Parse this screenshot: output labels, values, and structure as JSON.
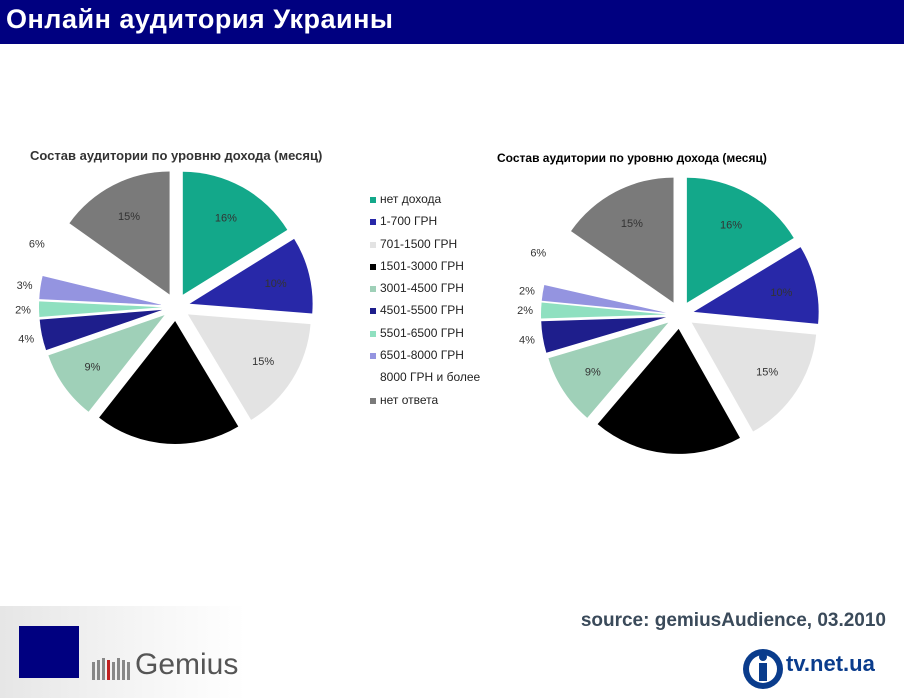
{
  "page": {
    "title": "Онлайн аудитория Украины"
  },
  "legend": [
    {
      "label": "нет дохода",
      "color": "#13a88a"
    },
    {
      "label": "1-700 ГРН",
      "color": "#2828a8"
    },
    {
      "label": "701-1500 ГРН",
      "color": "#e3e3e3"
    },
    {
      "label": "1501-3000 ГРН",
      "color": "#000000"
    },
    {
      "label": "3001-4500 ГРН",
      "color": "#9fd0b8"
    },
    {
      "label": "4501-5500 ГРН",
      "color": "#1e1e8c"
    },
    {
      "label": "5501-6500 ГРН",
      "color": "#8fe0c0"
    },
    {
      "label": "6501-8000 ГРН",
      "color": "#9494e0"
    },
    {
      "label": "8000 ГРН и более",
      "color": "#ffffff"
    },
    {
      "label": "нет ответа",
      "color": "#7a7a7a"
    }
  ],
  "chart_data": [
    {
      "type": "pie",
      "title": "Состав аудитории по уровню дохода  (месяц)",
      "categories": [
        "нет дохода",
        "1-700 ГРН",
        "701-1500 ГРН",
        "1501-3000 ГРН",
        "3001-4500 ГРН",
        "4501-5500 ГРН",
        "5501-6500 ГРН",
        "6501-8000 ГРН",
        "8000 ГРН и более",
        "нет ответа"
      ],
      "values": [
        16,
        10,
        15,
        19,
        9,
        4,
        2,
        3,
        6,
        15
      ],
      "labels": [
        "16%",
        "10%",
        "15%",
        "",
        "9%",
        "4%",
        "2%",
        "3%",
        "6%",
        "15%"
      ],
      "legend": "right"
    },
    {
      "type": "pie",
      "title": "Состав аудитории по уровню дохода  (месяц)",
      "categories": [
        "нет дохода",
        "1-700 ГРН",
        "701-1500 ГРН",
        "1501-3000 ГРН",
        "3001-4500 ГРН",
        "4501-5500 ГРН",
        "5501-6500 ГРН",
        "6501-8000 ГРН",
        "8000 ГРН и более",
        "нет ответа"
      ],
      "values": [
        16,
        10,
        15,
        19,
        9,
        4,
        2,
        2,
        6,
        15
      ],
      "labels": [
        "16%",
        "10%",
        "15%",
        "",
        "9%",
        "4%",
        "2%",
        "2%",
        "6%",
        "15%"
      ],
      "legend": "none"
    }
  ],
  "footer": {
    "source": "source: gemiusAudience, 03.2010",
    "gemius_logo": "Gemius",
    "tvnet_logo": "tv.net.ua"
  }
}
